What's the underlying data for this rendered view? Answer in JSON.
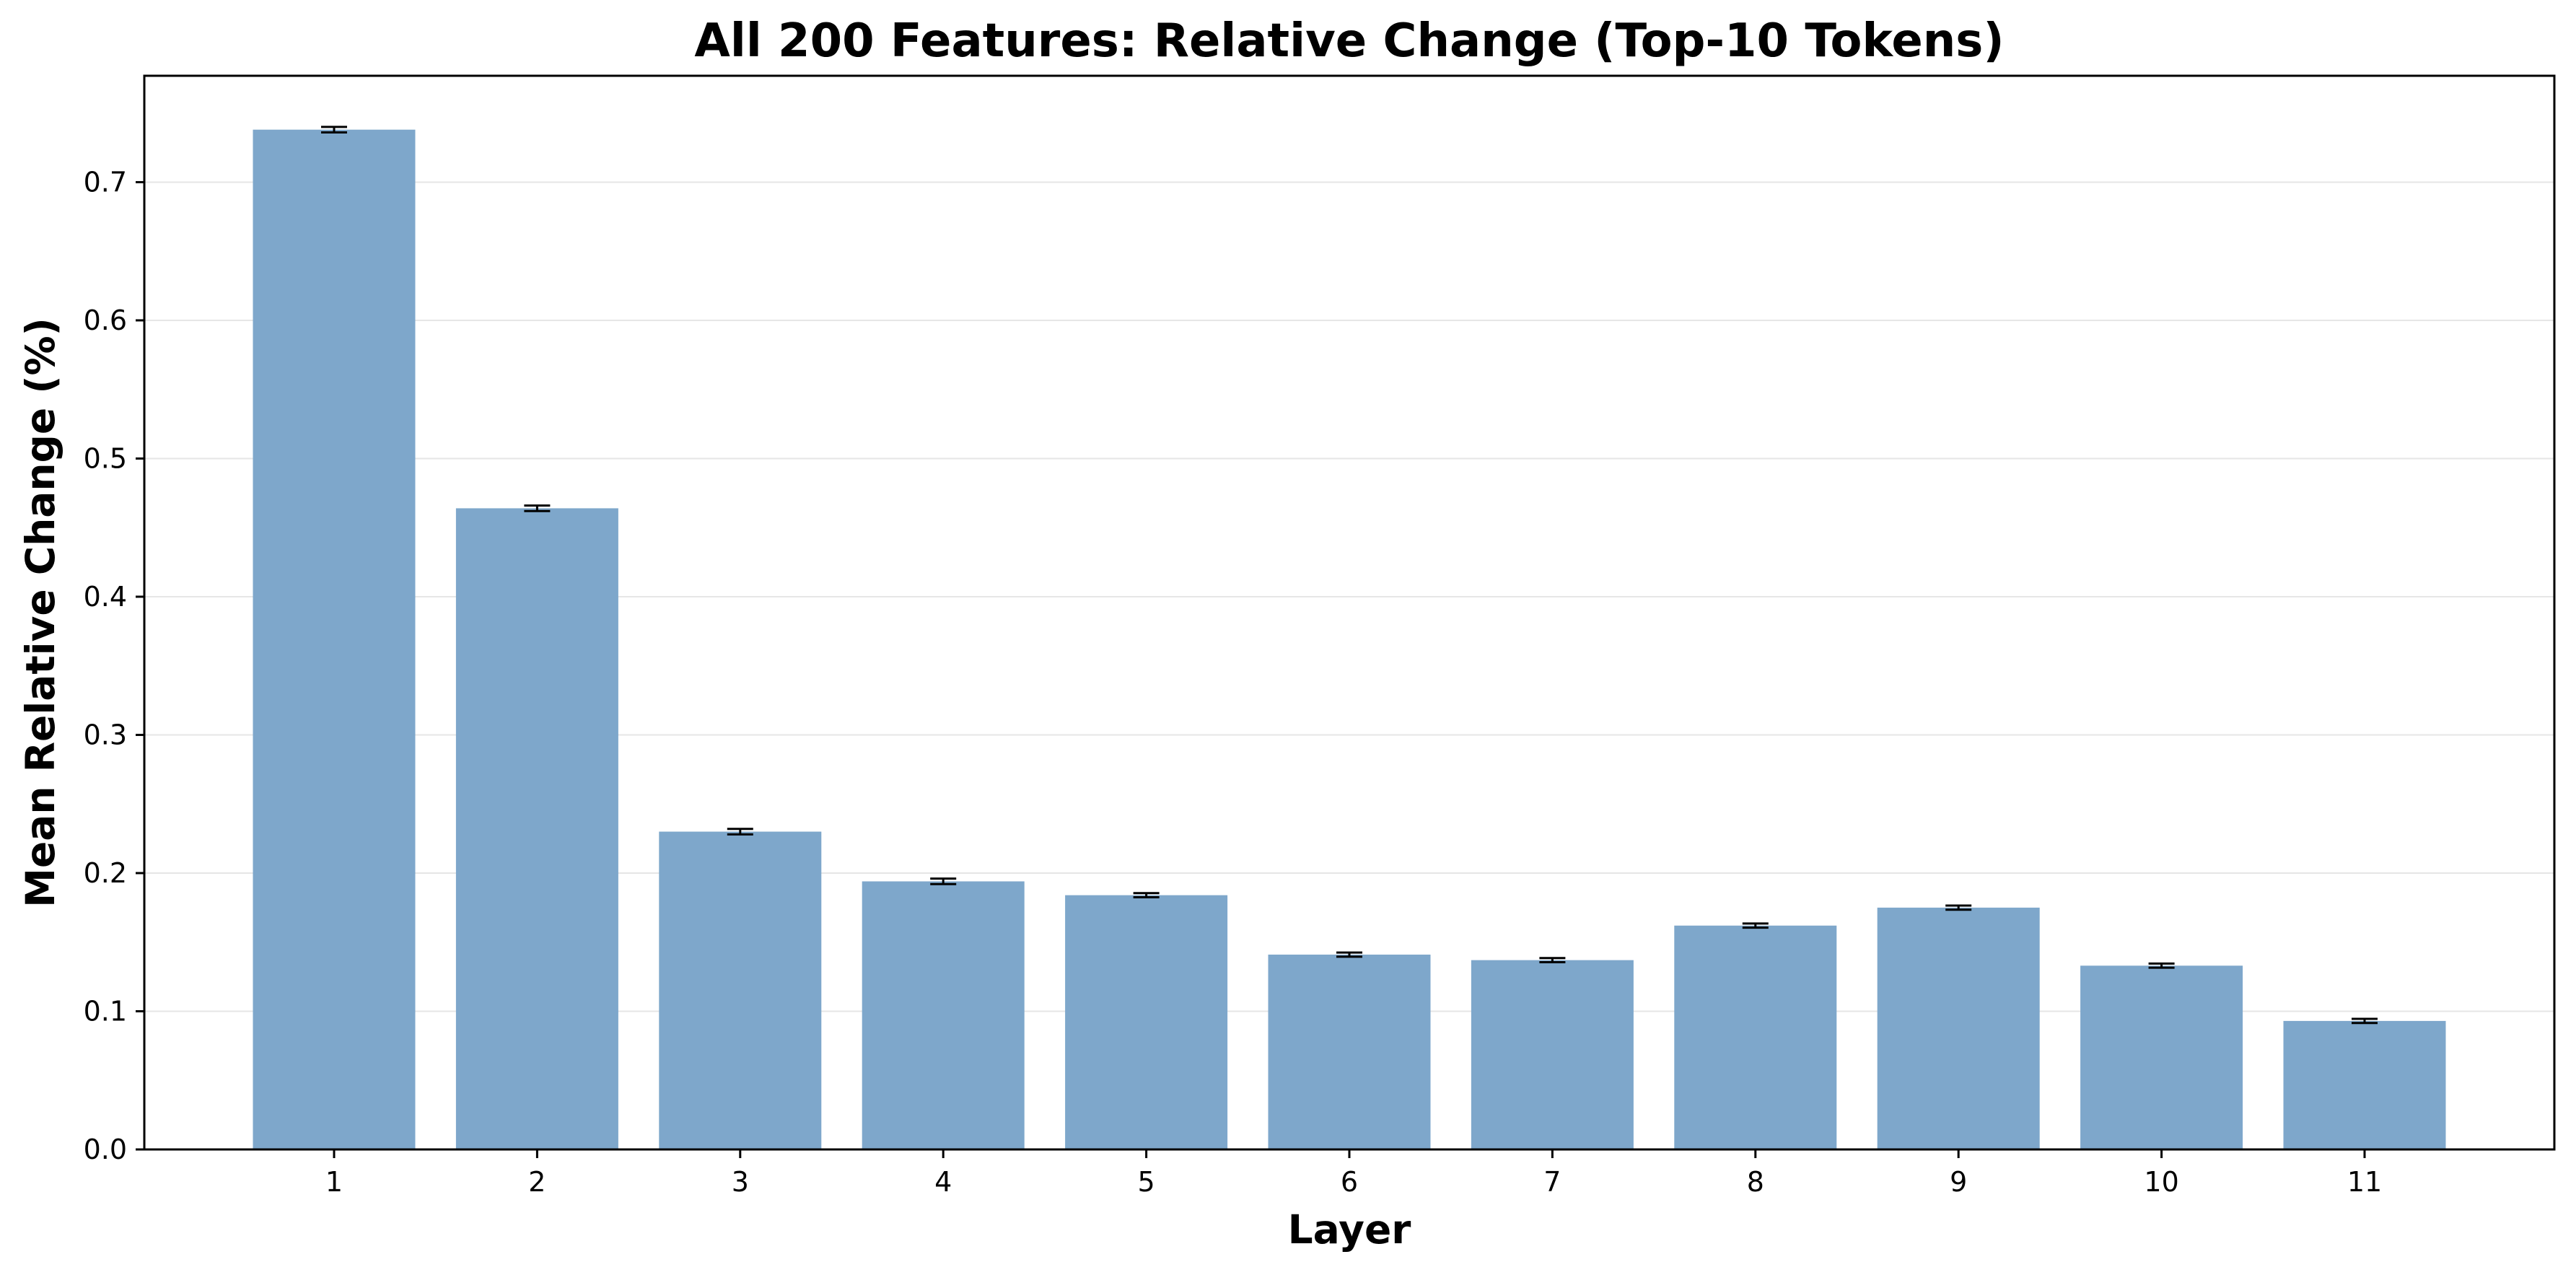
{
  "chart_data": {
    "type": "bar",
    "title": "All 200 Features: Relative Change (Top-10 Tokens)",
    "xlabel": "Layer",
    "ylabel": "Mean Relative Change (%)",
    "categories": [
      "1",
      "2",
      "3",
      "4",
      "5",
      "6",
      "7",
      "8",
      "9",
      "10",
      "11"
    ],
    "values": [
      0.738,
      0.464,
      0.23,
      0.194,
      0.184,
      0.141,
      0.137,
      0.162,
      0.175,
      0.133,
      0.093
    ],
    "errors": [
      0.002,
      0.002,
      0.002,
      0.002,
      0.0015,
      0.0015,
      0.0015,
      0.0015,
      0.0015,
      0.0015,
      0.0015
    ],
    "ylim": [
      0.0,
      0.777
    ],
    "yticks": [
      "0.0",
      "0.1",
      "0.2",
      "0.3",
      "0.4",
      "0.5",
      "0.6",
      "0.7"
    ],
    "grid": "y",
    "bar_color": "#7ea7cb",
    "error_color": "#000000",
    "grid_color": "#e6e6e6"
  }
}
